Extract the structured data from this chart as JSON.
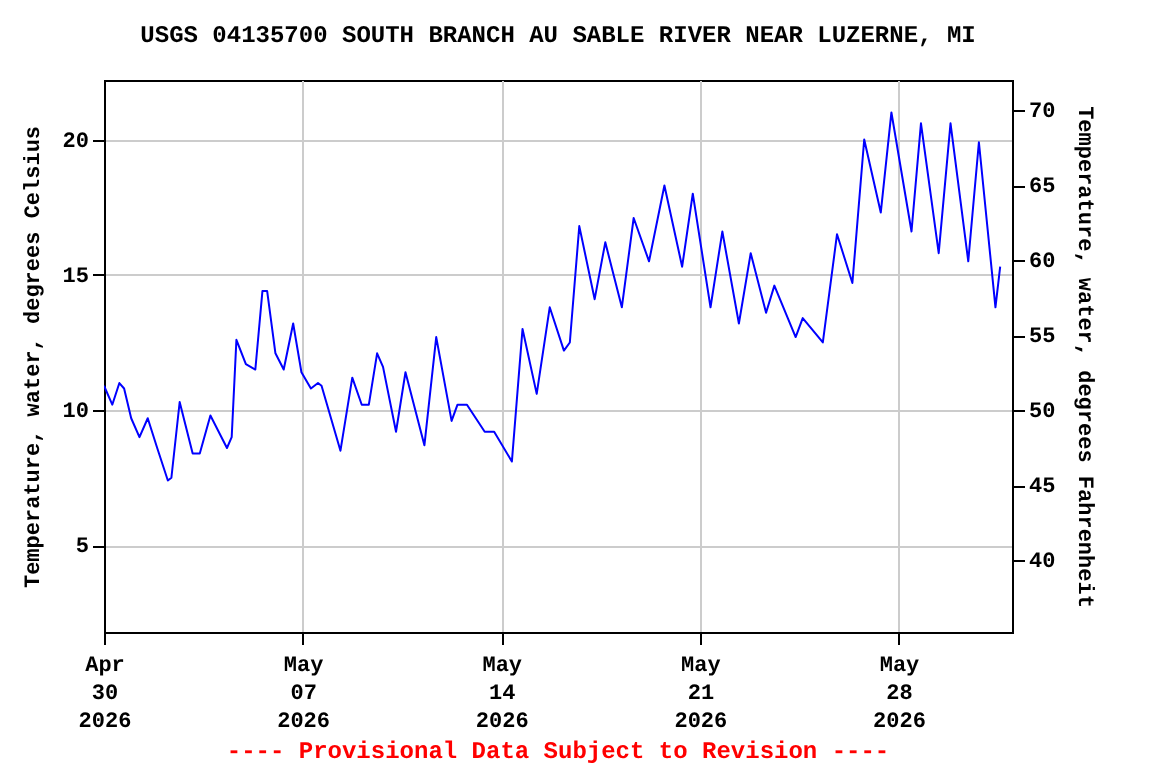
{
  "chart_data": {
    "type": "line",
    "title": "USGS 04135700 SOUTH BRANCH AU SABLE RIVER NEAR LUZERNE, MI",
    "ylabel": "Temperature, water, degrees Celsius",
    "y2label": "Temperature, water, degrees Fahrenheit",
    "annotations": [
      "---- Provisional Data Subject to Revision ----"
    ],
    "x": [
      "2026-04-30T00:00",
      "2026-04-30T07:00",
      "2026-04-30T13:00",
      "2026-04-30T17:00",
      "2026-04-30T23:00",
      "2026-05-01T06:00",
      "2026-05-01T13:00",
      "2026-05-01T21:00",
      "2026-05-02T06:00",
      "2026-05-02T09:00",
      "2026-05-02T16:00",
      "2026-05-03T03:00",
      "2026-05-03T09:00",
      "2026-05-03T18:00",
      "2026-05-04T08:00",
      "2026-05-04T12:00",
      "2026-05-04T16:00",
      "2026-05-05T00:00",
      "2026-05-05T08:00",
      "2026-05-05T14:00",
      "2026-05-05T18:00",
      "2026-05-06T01:00",
      "2026-05-06T08:00",
      "2026-05-06T16:00",
      "2026-05-06T23:00",
      "2026-05-07T07:00",
      "2026-05-07T13:00",
      "2026-05-07T16:00",
      "2026-05-08T08:00",
      "2026-05-08T18:00",
      "2026-05-09T02:00",
      "2026-05-09T08:00",
      "2026-05-09T15:00",
      "2026-05-09T20:00",
      "2026-05-10T07:00",
      "2026-05-10T15:00",
      "2026-05-11T07:00",
      "2026-05-11T17:00",
      "2026-05-12T06:00",
      "2026-05-12T11:00",
      "2026-05-12T19:00",
      "2026-05-13T10:00",
      "2026-05-13T18:00",
      "2026-05-14T09:00",
      "2026-05-14T18:00",
      "2026-05-15T06:00",
      "2026-05-15T17:00",
      "2026-05-16T05:00",
      "2026-05-16T10:00",
      "2026-05-16T18:00",
      "2026-05-17T07:00",
      "2026-05-17T16:00",
      "2026-05-18T06:00",
      "2026-05-18T16:00",
      "2026-05-19T05:00",
      "2026-05-19T18:00",
      "2026-05-20T09:00",
      "2026-05-20T18:00",
      "2026-05-21T09:00",
      "2026-05-21T19:00",
      "2026-05-22T09:00",
      "2026-05-22T19:00",
      "2026-05-23T08:00",
      "2026-05-23T15:00",
      "2026-05-24T09:00",
      "2026-05-24T15:00",
      "2026-05-25T08:00",
      "2026-05-25T20:00",
      "2026-05-26T09:00",
      "2026-05-26T19:00",
      "2026-05-27T09:00",
      "2026-05-27T18:00",
      "2026-05-28T11:00",
      "2026-05-28T19:00",
      "2026-05-29T10:00",
      "2026-05-29T20:00",
      "2026-05-30T11:00",
      "2026-05-30T20:00",
      "2026-05-31T10:00",
      "2026-05-31T14:00"
    ],
    "series": [
      {
        "color": "#0000ff",
        "values": [
          10.9,
          10.2,
          11.0,
          10.8,
          9.7,
          9.0,
          9.7,
          8.6,
          7.4,
          7.5,
          10.3,
          8.4,
          8.4,
          9.8,
          8.6,
          9.0,
          12.6,
          11.7,
          11.5,
          14.4,
          14.4,
          12.1,
          11.5,
          13.2,
          11.4,
          10.8,
          11.0,
          10.9,
          8.5,
          11.2,
          10.2,
          10.2,
          12.1,
          11.6,
          9.2,
          11.4,
          8.7,
          12.7,
          9.6,
          10.2,
          10.2,
          9.2,
          9.2,
          8.1,
          13.0,
          10.6,
          13.8,
          12.2,
          12.5,
          16.8,
          14.1,
          16.2,
          13.8,
          17.1,
          15.5,
          18.3,
          15.3,
          18.0,
          13.8,
          16.6,
          13.2,
          15.8,
          13.6,
          14.6,
          12.7,
          13.4,
          12.5,
          16.5,
          14.7,
          20.0,
          17.3,
          21.0,
          16.6,
          20.6,
          15.8,
          20.6,
          15.5,
          19.9,
          13.8,
          15.3
        ]
      }
    ],
    "xlim": [
      "2026-04-30",
      "2026-06-01"
    ],
    "xticks": [
      {
        "value": "2026-04-30",
        "label": "Apr 30 2026"
      },
      {
        "value": "2026-05-07",
        "label": "May 07 2026"
      },
      {
        "value": "2026-05-14",
        "label": "May 14 2026"
      },
      {
        "value": "2026-05-21",
        "label": "May 21 2026"
      },
      {
        "value": "2026-05-28",
        "label": "May 28 2026"
      }
    ],
    "ylim": [
      1.8,
      22.2
    ],
    "yticks": [
      5,
      10,
      15,
      20
    ],
    "y2lim": [
      35.2,
      72.0
    ],
    "y2ticks": [
      40,
      45,
      50,
      55,
      60,
      65,
      70
    ],
    "grid": true
  }
}
